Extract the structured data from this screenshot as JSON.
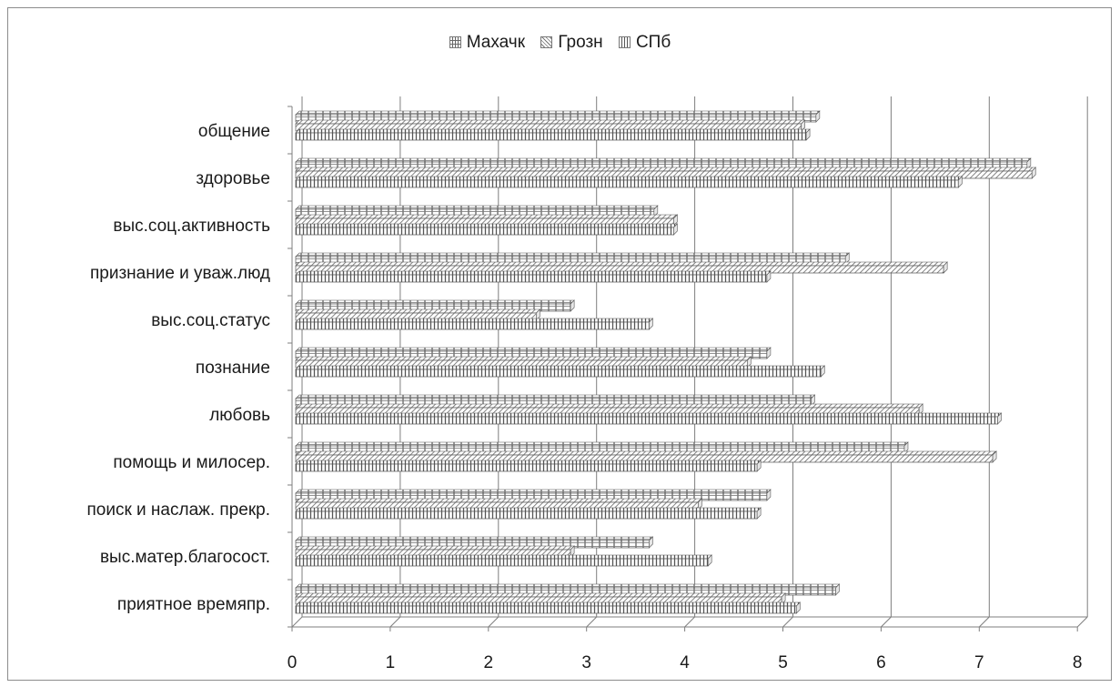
{
  "chart_data": {
    "type": "bar",
    "orientation": "horizontal",
    "style": "3d-clustered",
    "legend_position": "top",
    "grid": true,
    "xlim": [
      0,
      8
    ],
    "x_ticks": [
      "0",
      "1",
      "2",
      "3",
      "4",
      "5",
      "6",
      "7",
      "8"
    ],
    "categories": [
      "общение",
      "здоровье",
      "выс.соц.активность",
      "признание и уваж.люд",
      "выс.соц.статус",
      "познание",
      "любовь",
      "помощь и милосер.",
      "поиск и наслаж. прекр.",
      "выс.матер.благосост.",
      "приятное времяпр."
    ],
    "series": [
      {
        "name": "Махачк",
        "pattern": "grid",
        "values": [
          5.3,
          7.45,
          3.65,
          5.6,
          2.8,
          4.8,
          5.25,
          6.2,
          4.8,
          3.6,
          5.5
        ]
      },
      {
        "name": "Грозн",
        "pattern": "diagonal",
        "values": [
          5.15,
          7.5,
          3.85,
          6.6,
          2.45,
          4.6,
          6.35,
          7.1,
          4.1,
          2.8,
          4.95
        ]
      },
      {
        "name": "СПб",
        "pattern": "vertical",
        "values": [
          5.2,
          6.75,
          3.85,
          4.8,
          3.6,
          5.35,
          7.15,
          4.7,
          4.7,
          4.2,
          5.1
        ]
      }
    ],
    "colors": {
      "stroke": "#555555",
      "fill": "#ffffff",
      "grid": "#7f7f7f",
      "frame": "#8c8c8c"
    }
  }
}
